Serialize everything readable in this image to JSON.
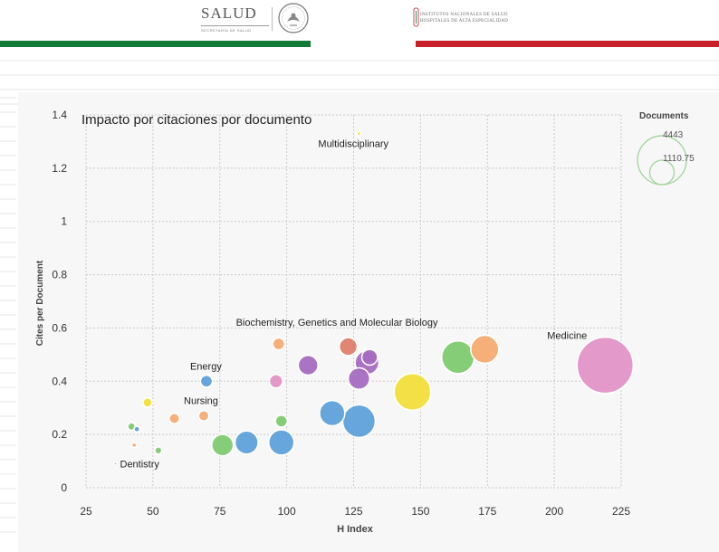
{
  "header": {
    "salud_word": "SALUD",
    "salud_sub": "SECRETARÍA DE SALUD",
    "institution_line1": "INSTITUTOS NACIONALES DE SALUD",
    "institution_line2": "HOSPITALES DE ALTA ESPECIALIDAD",
    "colors": {
      "green": "#127a37",
      "red": "#c9202c"
    }
  },
  "chart_data": {
    "type": "scatter",
    "title": "Impacto por citaciones por documento",
    "xlabel": "H Index",
    "ylabel": "Cites per Document",
    "xlim": [
      25,
      225
    ],
    "ylim": [
      0,
      1.4
    ],
    "x_ticks": [
      "25",
      "50",
      "75",
      "100",
      "125",
      "150",
      "175",
      "200",
      "225"
    ],
    "y_ticks": [
      "0",
      "0.2",
      "0.4",
      "0.6",
      "0.8",
      "1",
      "1.2",
      "1.4"
    ],
    "grid": true,
    "legend": {
      "title": "Documents",
      "position": "top-right",
      "reference_sizes": [
        4443,
        1110.75
      ],
      "reference_labels": [
        "4443",
        "1110.75"
      ]
    },
    "points": [
      {
        "label": "Multidisciplinary",
        "x": 127,
        "y": 1.33,
        "size": 20,
        "color": "#f2de3a"
      },
      {
        "label": "Medicine",
        "x": 219,
        "y": 0.46,
        "size": 4443,
        "color": "#e294c6"
      },
      {
        "label": "Biochemistry, Genetics and Molecular Biology",
        "x": 123,
        "y": 0.53,
        "size": 450,
        "color": "#de7f6c"
      },
      {
        "label": "Energy",
        "x": 70,
        "y": 0.4,
        "size": 200,
        "color": "#5ea1da"
      },
      {
        "label": "Nursing",
        "x": 69,
        "y": 0.27,
        "size": 150,
        "color": "#f6ab72"
      },
      {
        "label": "Dentistry",
        "x": 36,
        "y": 0.09,
        "size": 10,
        "color": "#7fca71"
      },
      {
        "label": "",
        "x": 174,
        "y": 0.52,
        "size": 1100,
        "color": "#f6ab72"
      },
      {
        "label": "",
        "x": 164,
        "y": 0.49,
        "size": 1500,
        "color": "#7fca71"
      },
      {
        "label": "",
        "x": 147,
        "y": 0.36,
        "size": 1900,
        "color": "#f2de3a"
      },
      {
        "label": "",
        "x": 127,
        "y": 0.25,
        "size": 1500,
        "color": "#5ea1da"
      },
      {
        "label": "",
        "x": 117,
        "y": 0.28,
        "size": 900,
        "color": "#5ea1da"
      },
      {
        "label": "",
        "x": 98,
        "y": 0.17,
        "size": 900,
        "color": "#5ea1da"
      },
      {
        "label": "",
        "x": 85,
        "y": 0.17,
        "size": 750,
        "color": "#5ea1da"
      },
      {
        "label": "",
        "x": 76,
        "y": 0.16,
        "size": 650,
        "color": "#7fca71"
      },
      {
        "label": "",
        "x": 98,
        "y": 0.25,
        "size": 200,
        "color": "#7fca71"
      },
      {
        "label": "",
        "x": 96,
        "y": 0.4,
        "size": 250,
        "color": "#e294c6"
      },
      {
        "label": "",
        "x": 97,
        "y": 0.54,
        "size": 200,
        "color": "#f6ab72"
      },
      {
        "label": "",
        "x": 108,
        "y": 0.46,
        "size": 550,
        "color": "#a56cc1"
      },
      {
        "label": "",
        "x": 130,
        "y": 0.47,
        "size": 800,
        "color": "#a56cc1"
      },
      {
        "label": "",
        "x": 127,
        "y": 0.41,
        "size": 650,
        "color": "#a56cc1"
      },
      {
        "label": "",
        "x": 131,
        "y": 0.49,
        "size": 350,
        "color": "#a56cc1"
      },
      {
        "label": "",
        "x": 48,
        "y": 0.32,
        "size": 120,
        "color": "#f2de3a"
      },
      {
        "label": "",
        "x": 58,
        "y": 0.26,
        "size": 150,
        "color": "#f6ab72"
      },
      {
        "label": "",
        "x": 42,
        "y": 0.23,
        "size": 80,
        "color": "#7fca71"
      },
      {
        "label": "",
        "x": 44,
        "y": 0.22,
        "size": 45,
        "color": "#5ea1da"
      },
      {
        "label": "",
        "x": 43,
        "y": 0.16,
        "size": 30,
        "color": "#f6ab72"
      },
      {
        "label": "",
        "x": 52,
        "y": 0.14,
        "size": 70,
        "color": "#7fca71"
      }
    ]
  }
}
